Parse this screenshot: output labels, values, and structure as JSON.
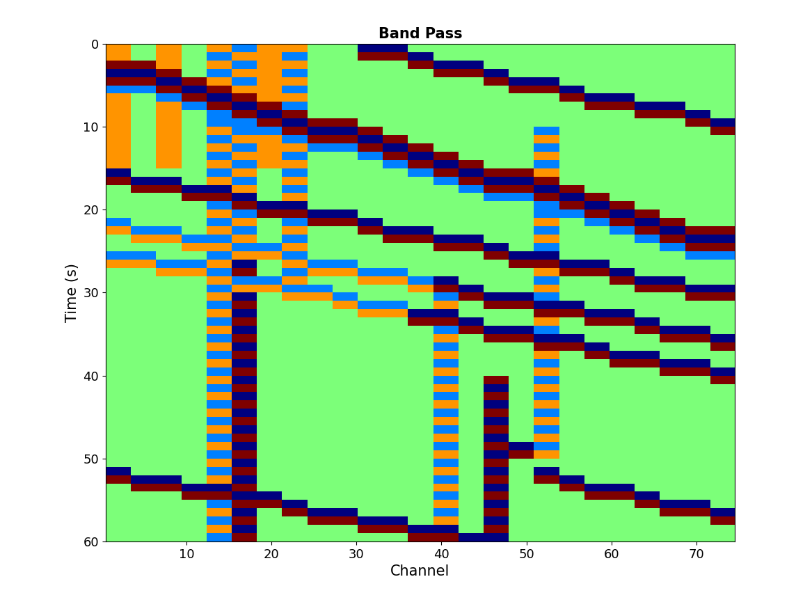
{
  "chart_data": {
    "type": "heatmap",
    "title": "Band Pass",
    "x_label": "Channel",
    "y_label": "Time (s)",
    "xlim": [
      0.5,
      74.5
    ],
    "ylim": [
      60,
      0
    ],
    "xticks": [
      10,
      20,
      30,
      40,
      50,
      60,
      70
    ],
    "yticks": [
      0,
      10,
      20,
      30,
      40,
      50,
      60
    ],
    "cells": [
      [
        1,
        0,
        1,
        0,
        1,
        -1,
        1,
        1,
        0,
        0,
        -2,
        -2,
        0,
        0,
        0,
        0,
        0,
        0,
        0,
        0,
        0,
        0,
        0,
        0,
        0
      ],
      [
        1,
        0,
        1,
        0,
        -1,
        1,
        1,
        -1,
        0,
        0,
        2,
        2,
        -2,
        0,
        0,
        0,
        0,
        0,
        0,
        0,
        0,
        0,
        0,
        0,
        0
      ],
      [
        2,
        2,
        1,
        0,
        1,
        -1,
        1,
        1,
        0,
        0,
        0,
        0,
        2,
        -2,
        -2,
        0,
        0,
        0,
        0,
        0,
        0,
        0,
        0,
        0,
        0
      ],
      [
        -2,
        -2,
        2,
        0,
        -1,
        1,
        1,
        -1,
        0,
        0,
        0,
        0,
        0,
        2,
        2,
        -2,
        0,
        0,
        0,
        0,
        0,
        0,
        0,
        0,
        0
      ],
      [
        2,
        2,
        -2,
        2,
        1,
        -1,
        1,
        1,
        0,
        0,
        0,
        0,
        0,
        0,
        0,
        2,
        -2,
        -2,
        0,
        0,
        0,
        0,
        0,
        0,
        0
      ],
      [
        -1,
        -1,
        2,
        -2,
        2,
        1,
        1,
        -1,
        0,
        0,
        0,
        0,
        0,
        0,
        0,
        0,
        2,
        2,
        -2,
        0,
        0,
        0,
        0,
        0,
        0
      ],
      [
        1,
        0,
        -1,
        2,
        -2,
        2,
        1,
        1,
        0,
        0,
        0,
        0,
        0,
        0,
        0,
        0,
        0,
        0,
        2,
        -2,
        -2,
        0,
        0,
        0,
        0
      ],
      [
        1,
        0,
        1,
        -1,
        2,
        -2,
        2,
        -1,
        0,
        0,
        0,
        0,
        0,
        0,
        0,
        0,
        0,
        0,
        0,
        2,
        2,
        -2,
        -2,
        0,
        0
      ],
      [
        1,
        0,
        1,
        0,
        -1,
        2,
        -2,
        2,
        0,
        0,
        0,
        0,
        0,
        0,
        0,
        0,
        0,
        0,
        0,
        0,
        0,
        2,
        2,
        -2,
        0
      ],
      [
        1,
        0,
        1,
        0,
        -1,
        -1,
        2,
        -2,
        2,
        2,
        0,
        0,
        0,
        0,
        0,
        0,
        0,
        0,
        0,
        0,
        0,
        0,
        0,
        2,
        -2
      ],
      [
        1,
        0,
        1,
        0,
        1,
        -1,
        -1,
        2,
        -2,
        -2,
        2,
        0,
        0,
        0,
        0,
        0,
        0,
        -1,
        0,
        0,
        0,
        0,
        0,
        0,
        2
      ],
      [
        1,
        0,
        1,
        0,
        -1,
        1,
        1,
        -1,
        2,
        2,
        -2,
        2,
        0,
        0,
        0,
        0,
        0,
        1,
        0,
        0,
        0,
        0,
        0,
        0,
        0
      ],
      [
        1,
        0,
        1,
        0,
        1,
        -1,
        1,
        1,
        -1,
        -1,
        2,
        -2,
        2,
        0,
        0,
        0,
        0,
        -1,
        0,
        0,
        0,
        0,
        0,
        0,
        0
      ],
      [
        1,
        0,
        1,
        0,
        -1,
        1,
        1,
        -1,
        0,
        0,
        -1,
        2,
        -2,
        2,
        0,
        0,
        0,
        1,
        0,
        0,
        0,
        0,
        0,
        0,
        0
      ],
      [
        1,
        0,
        1,
        0,
        1,
        -1,
        1,
        1,
        0,
        0,
        0,
        -1,
        2,
        -2,
        2,
        0,
        0,
        -1,
        0,
        0,
        0,
        0,
        0,
        0,
        0
      ],
      [
        -2,
        0,
        0,
        0,
        -1,
        1,
        0,
        -1,
        0,
        0,
        0,
        0,
        -1,
        2,
        -2,
        2,
        2,
        1,
        0,
        0,
        0,
        0,
        0,
        0,
        0
      ],
      [
        2,
        -2,
        -2,
        0,
        1,
        -1,
        0,
        1,
        0,
        0,
        0,
        0,
        0,
        -1,
        2,
        -2,
        -2,
        2,
        0,
        0,
        0,
        0,
        0,
        0,
        0
      ],
      [
        0,
        2,
        2,
        -2,
        -2,
        1,
        0,
        -1,
        0,
        0,
        0,
        0,
        0,
        0,
        -1,
        2,
        2,
        -2,
        2,
        0,
        0,
        0,
        0,
        0,
        0
      ],
      [
        0,
        0,
        0,
        2,
        2,
        -2,
        0,
        1,
        0,
        0,
        0,
        0,
        0,
        0,
        0,
        -1,
        -1,
        2,
        -2,
        2,
        0,
        0,
        0,
        0,
        0
      ],
      [
        0,
        0,
        0,
        0,
        -1,
        2,
        -2,
        -2,
        0,
        0,
        0,
        0,
        0,
        0,
        0,
        0,
        0,
        -1,
        2,
        -2,
        2,
        0,
        0,
        0,
        0
      ],
      [
        0,
        0,
        0,
        0,
        1,
        -1,
        2,
        2,
        -2,
        -2,
        0,
        0,
        0,
        0,
        0,
        0,
        0,
        -1,
        -1,
        2,
        -2,
        2,
        0,
        0,
        0
      ],
      [
        -1,
        0,
        0,
        0,
        -1,
        1,
        0,
        -1,
        2,
        2,
        -2,
        0,
        0,
        0,
        0,
        0,
        0,
        1,
        0,
        -1,
        2,
        -2,
        2,
        0,
        0
      ],
      [
        1,
        -1,
        -1,
        0,
        1,
        -1,
        0,
        1,
        0,
        0,
        2,
        -2,
        -2,
        0,
        0,
        0,
        0,
        -1,
        0,
        0,
        -1,
        2,
        -2,
        2,
        2
      ],
      [
        0,
        1,
        1,
        -1,
        -1,
        1,
        0,
        -1,
        0,
        0,
        0,
        2,
        2,
        -2,
        -2,
        0,
        0,
        1,
        0,
        0,
        0,
        -1,
        2,
        -2,
        -2
      ],
      [
        0,
        0,
        0,
        1,
        1,
        -1,
        -1,
        1,
        0,
        0,
        0,
        0,
        0,
        2,
        2,
        -2,
        0,
        -1,
        0,
        0,
        0,
        0,
        -1,
        2,
        2
      ],
      [
        -1,
        -1,
        0,
        0,
        -1,
        1,
        1,
        -1,
        0,
        0,
        0,
        0,
        0,
        0,
        0,
        2,
        -2,
        -2,
        0,
        0,
        0,
        0,
        0,
        -1,
        -1
      ],
      [
        1,
        1,
        -1,
        -1,
        1,
        -2,
        0,
        1,
        -1,
        -1,
        0,
        0,
        0,
        0,
        0,
        0,
        2,
        2,
        -2,
        -2,
        0,
        0,
        0,
        0,
        0
      ],
      [
        0,
        0,
        1,
        1,
        -1,
        2,
        0,
        -1,
        1,
        1,
        -1,
        -1,
        0,
        0,
        0,
        0,
        0,
        1,
        2,
        2,
        -2,
        0,
        0,
        0,
        0
      ],
      [
        0,
        0,
        0,
        0,
        1,
        -1,
        -1,
        1,
        0,
        0,
        1,
        1,
        -1,
        -2,
        0,
        0,
        0,
        -1,
        0,
        0,
        2,
        -2,
        -2,
        0,
        0
      ],
      [
        0,
        0,
        0,
        0,
        -1,
        1,
        1,
        -1,
        -1,
        0,
        0,
        0,
        1,
        2,
        -2,
        0,
        0,
        1,
        0,
        0,
        0,
        2,
        2,
        -2,
        -2
      ],
      [
        0,
        0,
        0,
        0,
        1,
        -2,
        0,
        1,
        1,
        -1,
        0,
        0,
        0,
        -1,
        2,
        -2,
        -2,
        -1,
        0,
        0,
        0,
        0,
        0,
        2,
        2
      ],
      [
        0,
        0,
        0,
        0,
        -1,
        2,
        0,
        0,
        0,
        1,
        -1,
        -1,
        0,
        1,
        0,
        2,
        2,
        -2,
        -2,
        0,
        0,
        0,
        0,
        0,
        0
      ],
      [
        0,
        0,
        0,
        0,
        1,
        -2,
        0,
        0,
        0,
        0,
        1,
        1,
        -2,
        -2,
        0,
        0,
        0,
        2,
        2,
        -2,
        -2,
        0,
        0,
        0,
        0
      ],
      [
        0,
        0,
        0,
        0,
        -1,
        2,
        0,
        0,
        0,
        0,
        0,
        0,
        2,
        2,
        -2,
        0,
        0,
        1,
        0,
        2,
        2,
        -2,
        0,
        0,
        0
      ],
      [
        0,
        0,
        0,
        0,
        1,
        -2,
        0,
        0,
        0,
        0,
        0,
        0,
        0,
        -1,
        2,
        -2,
        -2,
        -1,
        0,
        0,
        0,
        2,
        -2,
        -2,
        0
      ],
      [
        0,
        0,
        0,
        0,
        -1,
        2,
        0,
        0,
        0,
        0,
        0,
        0,
        0,
        1,
        0,
        2,
        2,
        -2,
        -2,
        0,
        0,
        0,
        2,
        2,
        -2
      ],
      [
        0,
        0,
        0,
        0,
        1,
        -2,
        0,
        0,
        0,
        0,
        0,
        0,
        0,
        -1,
        0,
        0,
        0,
        2,
        2,
        -2,
        0,
        0,
        0,
        0,
        2
      ],
      [
        0,
        0,
        0,
        0,
        -1,
        2,
        0,
        0,
        0,
        0,
        0,
        0,
        0,
        1,
        0,
        0,
        0,
        1,
        0,
        2,
        -2,
        -2,
        0,
        0,
        0
      ],
      [
        0,
        0,
        0,
        0,
        1,
        -2,
        0,
        0,
        0,
        0,
        0,
        0,
        0,
        -1,
        0,
        0,
        0,
        -1,
        0,
        0,
        2,
        2,
        -2,
        -2,
        0
      ],
      [
        0,
        0,
        0,
        0,
        -1,
        2,
        0,
        0,
        0,
        0,
        0,
        0,
        0,
        1,
        0,
        0,
        0,
        1,
        0,
        0,
        0,
        0,
        2,
        2,
        -2
      ],
      [
        0,
        0,
        0,
        0,
        1,
        -2,
        0,
        0,
        0,
        0,
        0,
        0,
        0,
        -1,
        0,
        2,
        0,
        -1,
        0,
        0,
        0,
        0,
        0,
        0,
        2
      ],
      [
        0,
        0,
        0,
        0,
        -1,
        2,
        0,
        0,
        0,
        0,
        0,
        0,
        0,
        1,
        0,
        -2,
        0,
        1,
        0,
        0,
        0,
        0,
        0,
        0,
        0
      ],
      [
        0,
        0,
        0,
        0,
        1,
        -2,
        0,
        0,
        0,
        0,
        0,
        0,
        0,
        -1,
        0,
        2,
        0,
        -1,
        0,
        0,
        0,
        0,
        0,
        0,
        0
      ],
      [
        0,
        0,
        0,
        0,
        -1,
        2,
        0,
        0,
        0,
        0,
        0,
        0,
        0,
        1,
        0,
        -2,
        0,
        1,
        0,
        0,
        0,
        0,
        0,
        0,
        0
      ],
      [
        0,
        0,
        0,
        0,
        1,
        -2,
        0,
        0,
        0,
        0,
        0,
        0,
        0,
        -1,
        0,
        2,
        0,
        -1,
        0,
        0,
        0,
        0,
        0,
        0,
        0
      ],
      [
        0,
        0,
        0,
        0,
        -1,
        2,
        0,
        0,
        0,
        0,
        0,
        0,
        0,
        1,
        0,
        -2,
        0,
        1,
        0,
        0,
        0,
        0,
        0,
        0,
        0
      ],
      [
        0,
        0,
        0,
        0,
        1,
        -2,
        0,
        0,
        0,
        0,
        0,
        0,
        0,
        -1,
        0,
        2,
        0,
        -1,
        0,
        0,
        0,
        0,
        0,
        0,
        0
      ],
      [
        0,
        0,
        0,
        0,
        -1,
        2,
        0,
        0,
        0,
        0,
        0,
        0,
        0,
        1,
        0,
        -2,
        0,
        1,
        0,
        0,
        0,
        0,
        0,
        0,
        0
      ],
      [
        0,
        0,
        0,
        0,
        1,
        -2,
        0,
        0,
        0,
        0,
        0,
        0,
        0,
        -1,
        0,
        2,
        -2,
        -1,
        0,
        0,
        0,
        0,
        0,
        0,
        0
      ],
      [
        0,
        0,
        0,
        0,
        -1,
        2,
        0,
        0,
        0,
        0,
        0,
        0,
        0,
        1,
        0,
        -2,
        2,
        1,
        0,
        0,
        0,
        0,
        0,
        0,
        0
      ],
      [
        0,
        0,
        0,
        0,
        1,
        -2,
        0,
        0,
        0,
        0,
        0,
        0,
        0,
        -1,
        0,
        2,
        0,
        0,
        0,
        0,
        0,
        0,
        0,
        0,
        0
      ],
      [
        -2,
        0,
        0,
        0,
        -1,
        2,
        0,
        0,
        0,
        0,
        0,
        0,
        0,
        1,
        0,
        -2,
        0,
        -2,
        0,
        0,
        0,
        0,
        0,
        0,
        0
      ],
      [
        2,
        -2,
        -2,
        0,
        1,
        -2,
        0,
        0,
        0,
        0,
        0,
        0,
        0,
        -1,
        0,
        2,
        0,
        2,
        -2,
        0,
        0,
        0,
        0,
        0,
        0
      ],
      [
        0,
        2,
        2,
        -2,
        -2,
        2,
        0,
        0,
        0,
        0,
        0,
        0,
        0,
        1,
        0,
        -2,
        0,
        0,
        2,
        -2,
        -2,
        0,
        0,
        0,
        0
      ],
      [
        0,
        0,
        0,
        2,
        2,
        -2,
        -2,
        0,
        0,
        0,
        0,
        0,
        0,
        -1,
        0,
        2,
        0,
        0,
        0,
        2,
        2,
        -2,
        0,
        0,
        0
      ],
      [
        0,
        0,
        0,
        0,
        -1,
        2,
        2,
        -2,
        0,
        0,
        0,
        0,
        0,
        1,
        0,
        -2,
        0,
        0,
        0,
        0,
        0,
        2,
        -2,
        -2,
        0
      ],
      [
        0,
        0,
        0,
        0,
        1,
        -2,
        0,
        2,
        -2,
        -2,
        0,
        0,
        0,
        -1,
        0,
        2,
        0,
        0,
        0,
        0,
        0,
        0,
        2,
        2,
        -2
      ],
      [
        0,
        0,
        0,
        0,
        -1,
        2,
        0,
        0,
        2,
        2,
        -2,
        -2,
        0,
        1,
        0,
        -2,
        0,
        0,
        0,
        0,
        0,
        0,
        0,
        0,
        2
      ],
      [
        0,
        0,
        0,
        0,
        1,
        -2,
        0,
        0,
        0,
        0,
        2,
        2,
        -2,
        -2,
        0,
        2,
        0,
        0,
        0,
        0,
        0,
        0,
        0,
        0,
        0
      ],
      [
        0,
        0,
        0,
        0,
        -1,
        2,
        0,
        0,
        0,
        0,
        0,
        0,
        2,
        2,
        -2,
        -2,
        0,
        0,
        0,
        0,
        0,
        0,
        0,
        0,
        0
      ]
    ]
  }
}
